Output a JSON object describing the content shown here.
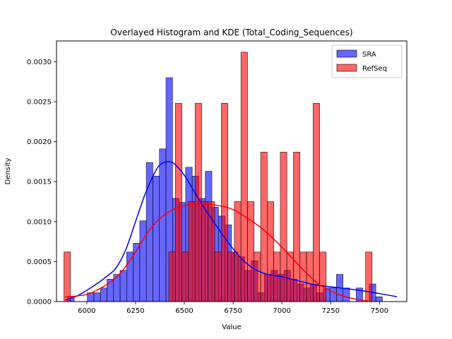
{
  "chart_data": {
    "type": "bar",
    "title": "Overlayed Histogram and KDE (Total_Coding_Sequences)",
    "xlabel": "Value",
    "ylabel": "Density",
    "xlim": [
      5845,
      7640
    ],
    "ylim": [
      0,
      0.00326
    ],
    "xticks": [
      6000,
      6250,
      6500,
      6750,
      7000,
      7250,
      7500
    ],
    "yticks": [
      0,
      0.0005,
      0.001,
      0.0015,
      0.002,
      0.0025,
      0.003
    ],
    "ytick_labels": [
      "0.0000",
      "0.0005",
      "0.0010",
      "0.0015",
      "0.0020",
      "0.0025",
      "0.0030"
    ],
    "grid": false,
    "legend_position": "top-right",
    "series": [
      {
        "name": "SRA",
        "color": "#0000ff",
        "kde_color": "#0000ff",
        "bin_start": 5902,
        "bin_width": 33.6,
        "values": [
          6e-05,
          0.0,
          0.0,
          0.00011,
          0.00011,
          0.00017,
          0.00028,
          0.00034,
          0.00039,
          0.00062,
          0.00073,
          0.00101,
          0.00174,
          0.00157,
          0.00191,
          0.0028,
          0.00129,
          0.00124,
          0.00168,
          0.00157,
          0.00129,
          0.00163,
          0.00118,
          0.00107,
          0.00096,
          0.00062,
          0.00056,
          0.00039,
          0.00051,
          0.00011,
          0.00034,
          0.00039,
          0.00034,
          0.00039,
          0.00028,
          0.00022,
          0.00017,
          0.00022,
          0.00011,
          0.00017,
          0.00017,
          0.00034,
          0.00017,
          0.0,
          0.00017,
          0.0,
          0.00022,
          6e-05
        ],
        "kde_x": [
          5890,
          5950,
          6000,
          6050,
          6100,
          6150,
          6200,
          6250,
          6300,
          6350,
          6380,
          6420,
          6450,
          6500,
          6550,
          6600,
          6650,
          6700,
          6750,
          6800,
          6850,
          6900,
          6950,
          7000,
          7050,
          7100,
          7150,
          7200,
          7300,
          7400,
          7500,
          7590
        ],
        "kde_y": [
          2e-05,
          7e-05,
          0.00014,
          0.00022,
          0.00031,
          0.00042,
          0.00065,
          0.001,
          0.00135,
          0.00162,
          0.00172,
          0.00175,
          0.00172,
          0.00158,
          0.00138,
          0.00118,
          0.001,
          0.00082,
          0.00066,
          0.00052,
          0.00042,
          0.00036,
          0.00033,
          0.00031,
          0.00028,
          0.00025,
          0.00022,
          0.0002,
          0.00017,
          0.00014,
          0.0001,
          6e-05
        ]
      },
      {
        "name": "RefSeq",
        "color": "#ff0000",
        "kde_color": "#ff0000",
        "bin_start": 5883,
        "bin_width": 33.6,
        "values": [
          0.00062,
          0.0,
          0.0,
          0.0,
          0.0,
          0.0,
          0.0,
          0.0,
          0.0,
          0.0,
          0.0,
          0.0,
          0.0,
          0.0,
          0.0,
          0.0,
          0.00062,
          0.00248,
          0.00062,
          0.00125,
          0.00248,
          0.00125,
          0.00125,
          0.00062,
          0.00248,
          0.00062,
          0.00125,
          0.00312,
          0.00125,
          0.00062,
          0.00187,
          0.00125,
          0.00062,
          0.00187,
          0.00062,
          0.00187,
          0.00062,
          0.00062,
          0.00248,
          0.00062,
          0.0,
          0.0,
          0.0,
          0.0,
          0.0,
          0.0,
          0.00062,
          0.0,
          0.0
        ],
        "kde_x": [
          5890,
          5950,
          6000,
          6050,
          6100,
          6150,
          6200,
          6250,
          6300,
          6350,
          6400,
          6450,
          6500,
          6550,
          6600,
          6650,
          6700,
          6750,
          6800,
          6850,
          6900,
          6950,
          7000,
          7050,
          7100,
          7150,
          7200,
          7300,
          7400,
          7440
        ],
        "kde_y": [
          6e-05,
          7e-05,
          9e-05,
          0.00014,
          0.00021,
          0.0003,
          0.00044,
          0.00062,
          0.00082,
          0.00098,
          0.00109,
          0.00116,
          0.0012,
          0.00122,
          0.00122,
          0.00121,
          0.00119,
          0.00115,
          0.00108,
          0.001,
          0.00091,
          0.0008,
          0.00068,
          0.00055,
          0.00042,
          0.0003,
          0.0002,
          8e-05,
          2e-05,
          1e-05
        ]
      }
    ]
  }
}
